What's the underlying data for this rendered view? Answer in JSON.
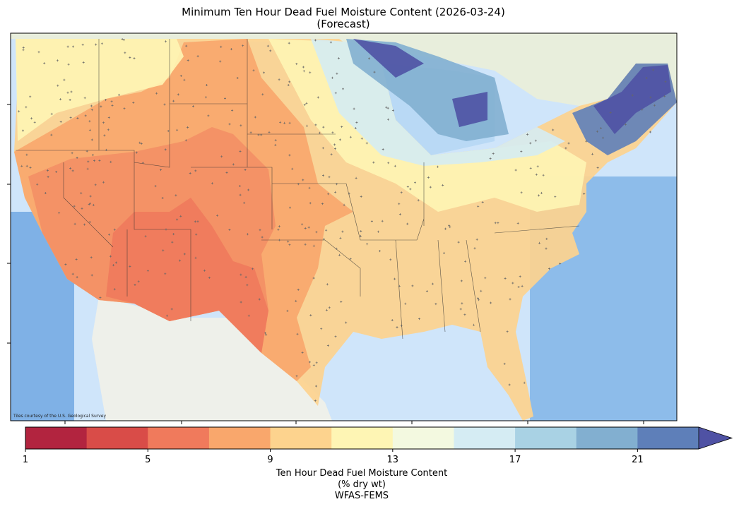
{
  "title": {
    "line1": "Minimum Ten Hour Dead Fuel Moisture Content (2026-03-24)",
    "line2": "(Forecast)"
  },
  "map": {
    "attribution": "Tiles courtesy of the U.S. Geological Survey"
  },
  "colorbar": {
    "label_line1": "Ten Hour Dead Fuel Moisture Content",
    "label_line2": "(% dry wt)",
    "label_line3": "WFAS-FEMS",
    "range": [
      1,
      23
    ],
    "extend": "max",
    "bounds": [
      1,
      3,
      5,
      7,
      9,
      11,
      13,
      15,
      17,
      19,
      21,
      23
    ],
    "colors": [
      "#b2243f",
      "#d94c48",
      "#f07a5c",
      "#f9a76c",
      "#fdd38e",
      "#fef5b4",
      "#f3f9e0",
      "#d5ecf3",
      "#a9d2e4",
      "#82afd0",
      "#5e7fb9"
    ],
    "extend_color": "#4f52a4",
    "ticks": [
      "1",
      "5",
      "9",
      "13",
      "17",
      "21"
    ]
  }
}
